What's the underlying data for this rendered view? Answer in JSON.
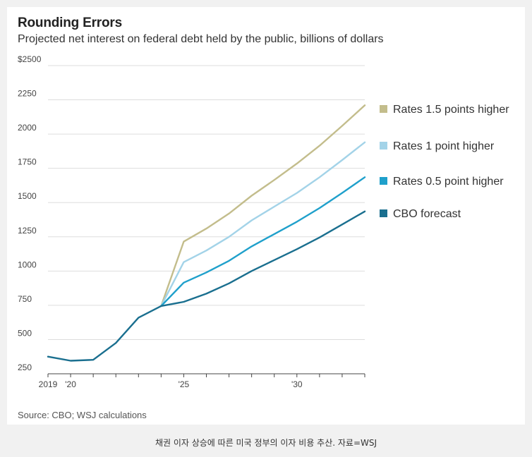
{
  "header": {
    "title": "Rounding Errors",
    "subtitle": "Projected net interest on federal debt held by the public, billions of dollars"
  },
  "footer": {
    "source": "Source: CBO; WSJ calculations",
    "caption": "채권 이자 상승에 따른 미국 정부의 이자 비용 추산. 자료=WSJ"
  },
  "colors": {
    "rates_1_5": "#c3bd8c",
    "rates_1": "#a3d3e8",
    "rates_0_5": "#1fa0cb",
    "cbo": "#1a6f8f",
    "grid": "#dddddd"
  },
  "chart_data": {
    "type": "line",
    "xlim": [
      2019,
      2033
    ],
    "ylim": [
      250,
      2500
    ],
    "y_ticks": [
      250,
      500,
      750,
      1000,
      1250,
      1500,
      1750,
      2000,
      2250,
      2500
    ],
    "y_tick_labels": [
      "250",
      "500",
      "750",
      "1000",
      "1250",
      "1500",
      "1750",
      "2000",
      "2250",
      "$2500"
    ],
    "x_ticks": [
      2019,
      2020,
      2021,
      2022,
      2023,
      2024,
      2025,
      2026,
      2027,
      2028,
      2029,
      2030,
      2031,
      2032,
      2033
    ],
    "x_tick_labels": [
      {
        "x": 2019,
        "label": "2019"
      },
      {
        "x": 2020,
        "label": "'20"
      },
      {
        "x": 2025,
        "label": "'25"
      },
      {
        "x": 2030,
        "label": "'30"
      }
    ],
    "grid": true,
    "legend": "right",
    "series": [
      {
        "name": "Rates 1.5 points higher",
        "color_key": "rates_1_5",
        "x": [
          2024,
          2025,
          2026,
          2027,
          2028,
          2029,
          2030,
          2031,
          2032,
          2033
        ],
        "y": [
          745,
          1215,
          1310,
          1420,
          1550,
          1665,
          1785,
          1915,
          2060,
          2210
        ]
      },
      {
        "name": "Rates 1 point higher",
        "color_key": "rates_1",
        "x": [
          2024,
          2025,
          2026,
          2027,
          2028,
          2029,
          2030,
          2031,
          2032,
          2033
        ],
        "y": [
          745,
          1065,
          1150,
          1250,
          1370,
          1470,
          1570,
          1685,
          1810,
          1940
        ]
      },
      {
        "name": "Rates 0.5 point higher",
        "color_key": "rates_0_5",
        "x": [
          2024,
          2025,
          2026,
          2027,
          2028,
          2029,
          2030,
          2031,
          2032,
          2033
        ],
        "y": [
          745,
          915,
          990,
          1075,
          1180,
          1270,
          1360,
          1460,
          1570,
          1685
        ]
      },
      {
        "name": "CBO forecast",
        "color_key": "cbo",
        "x": [
          2019,
          2020,
          2021,
          2022,
          2023,
          2024,
          2025,
          2026,
          2027,
          2028,
          2029,
          2030,
          2031,
          2032,
          2033
        ],
        "y": [
          375,
          345,
          352,
          475,
          660,
          745,
          775,
          835,
          910,
          1000,
          1080,
          1160,
          1245,
          1340,
          1435
        ]
      }
    ]
  }
}
